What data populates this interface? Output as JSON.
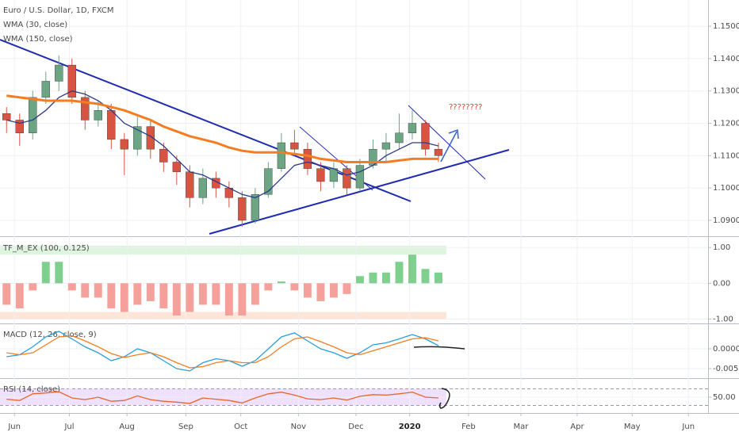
{
  "chart_data": [
    {
      "type": "candlestick",
      "title": "Euro / U.S. Dollar, 1D, FXCM",
      "categories": [
        null,
        null,
        null,
        null,
        null,
        null,
        null,
        null,
        null,
        null,
        null,
        null,
        null,
        null,
        null,
        null,
        null,
        null,
        null,
        null,
        null,
        null,
        null,
        null,
        null,
        null,
        null,
        null,
        null,
        null,
        null,
        null,
        null,
        null
      ],
      "open": [
        1.123,
        1.121,
        1.117,
        1.128,
        1.133,
        1.138,
        1.128,
        1.121,
        1.124,
        1.115,
        1.112,
        1.119,
        1.112,
        1.108,
        1.105,
        1.097,
        1.103,
        1.1,
        1.097,
        1.09,
        1.098,
        1.106,
        1.114,
        1.112,
        1.106,
        1.102,
        1.106,
        1.1,
        1.107,
        1.112,
        1.114,
        1.117,
        1.12,
        1.112
      ],
      "high": [
        1.125,
        1.123,
        1.13,
        1.136,
        1.141,
        1.14,
        1.13,
        1.127,
        1.126,
        1.117,
        1.122,
        1.121,
        1.114,
        1.11,
        1.107,
        1.106,
        1.105,
        1.102,
        1.099,
        1.1,
        1.108,
        1.117,
        1.118,
        1.114,
        1.108,
        1.108,
        1.107,
        1.109,
        1.115,
        1.117,
        1.123,
        1.124,
        1.121,
        1.114
      ],
      "low": [
        1.117,
        1.113,
        1.115,
        1.126,
        1.13,
        1.126,
        1.118,
        1.119,
        1.112,
        1.104,
        1.11,
        1.109,
        1.105,
        1.101,
        1.094,
        1.095,
        1.097,
        1.094,
        1.088,
        1.089,
        1.097,
        1.105,
        1.11,
        1.104,
        1.099,
        1.1,
        1.098,
        1.099,
        1.106,
        1.108,
        1.112,
        1.115,
        1.11,
        1.108
      ],
      "close": [
        1.121,
        1.117,
        1.128,
        1.133,
        1.138,
        1.128,
        1.121,
        1.124,
        1.115,
        1.112,
        1.119,
        1.112,
        1.108,
        1.105,
        1.097,
        1.103,
        1.1,
        1.097,
        1.09,
        1.098,
        1.106,
        1.114,
        1.112,
        1.106,
        1.102,
        1.106,
        1.1,
        1.107,
        1.112,
        1.114,
        1.117,
        1.12,
        1.112,
        1.11
      ],
      "up_color": "#6ba583",
      "down_color": "#d75442",
      "series": [
        {
          "name": "WMA (30, close)",
          "color": "#2c3a8c",
          "values": [
            1.121,
            1.12,
            1.121,
            1.124,
            1.128,
            1.13,
            1.129,
            1.127,
            1.124,
            1.12,
            1.118,
            1.116,
            1.113,
            1.109,
            1.105,
            1.104,
            1.102,
            1.1,
            1.098,
            1.097,
            1.099,
            1.103,
            1.107,
            1.108,
            1.107,
            1.106,
            1.104,
            1.105,
            1.107,
            1.11,
            1.112,
            1.114,
            1.114,
            1.113
          ]
        },
        {
          "name": "WMA (150, close)",
          "color": "#f57c20",
          "values": [
            1.1285,
            1.128,
            1.1275,
            1.127,
            1.127,
            1.127,
            1.1265,
            1.126,
            1.125,
            1.124,
            1.1225,
            1.121,
            1.119,
            1.1175,
            1.116,
            1.115,
            1.114,
            1.1125,
            1.1115,
            1.111,
            1.111,
            1.111,
            1.1105,
            1.11,
            1.109,
            1.1085,
            1.108,
            1.108,
            1.108,
            1.108,
            1.1085,
            1.109,
            1.109,
            1.109
          ]
        }
      ],
      "xlim": [
        0,
        54.1
      ],
      "ylim": [
        1.08533,
        1.15811
      ],
      "yticks": [
        {
          "value": 1.09,
          "label": "1.09000"
        },
        {
          "value": 1.1,
          "label": "1.10000"
        },
        {
          "value": 1.11,
          "label": "1.11000"
        },
        {
          "value": 1.12,
          "label": "1.12000"
        },
        {
          "value": 1.13,
          "label": "1.13000"
        },
        {
          "value": 1.14,
          "label": "1.14000"
        },
        {
          "value": 1.15,
          "label": "1.15000"
        }
      ],
      "annotation": "????????",
      "grid": true
    },
    {
      "type": "bar",
      "title": "TF_M_EX (100, 0.125)",
      "categories": [
        null,
        null,
        null,
        null,
        null,
        null,
        null,
        null,
        null,
        null,
        null,
        null,
        null,
        null,
        null,
        null,
        null,
        null,
        null,
        null,
        null,
        null,
        null,
        null,
        null,
        null,
        null,
        null,
        null,
        null,
        null,
        null,
        null,
        null
      ],
      "values": [
        -0.6,
        -0.7,
        -0.2,
        0.6,
        0.6,
        -0.2,
        -0.4,
        -0.4,
        -0.7,
        -0.8,
        -0.6,
        -0.5,
        -0.7,
        -0.9,
        -0.8,
        -0.6,
        -0.6,
        -0.9,
        -0.9,
        -0.6,
        -0.2,
        0.05,
        -0.2,
        -0.4,
        -0.5,
        -0.4,
        -0.3,
        0.2,
        0.3,
        0.3,
        0.6,
        0.8,
        0.4,
        0.3
      ],
      "positive_color": "#7fcf8f",
      "negative_color": "#f5a09a",
      "bands": [
        {
          "from": 0.8,
          "to": 1.05,
          "color": "#dcf5dc"
        },
        {
          "from": -0.8,
          "to": -1.0,
          "color": "#fde5d8"
        }
      ],
      "xlim": [
        0,
        54.1
      ],
      "ylim": [
        -1.1,
        1.27
      ],
      "yticks": [
        {
          "value": -1,
          "label": "-1.00"
        },
        {
          "value": 0,
          "label": "0.00"
        },
        {
          "value": 1,
          "label": "1.00"
        }
      ],
      "grid": true
    },
    {
      "type": "line",
      "title": "MACD (12, 26, close, 9)",
      "categories": [
        null,
        null,
        null,
        null,
        null,
        null,
        null,
        null,
        null,
        null,
        null,
        null,
        null,
        null,
        null,
        null,
        null,
        null,
        null,
        null,
        null,
        null,
        null,
        null,
        null,
        null,
        null,
        null,
        null,
        null,
        null,
        null,
        null,
        null
      ],
      "series": [
        {
          "color": "#2a9fd8",
          "values": [
            -0.002,
            -0.0015,
            0.0005,
            0.003,
            0.0044,
            0.0025,
            0.0005,
            -0.001,
            -0.003,
            -0.002,
            0,
            -0.001,
            -0.003,
            -0.005,
            -0.0056,
            -0.0035,
            -0.0025,
            -0.003,
            -0.0044,
            -0.003,
            0,
            0.003,
            0.004,
            0.002,
            0,
            -0.001,
            -0.0024,
            -0.001,
            0.001,
            0.0015,
            0.0025,
            0.0036,
            0.0025,
            0.0008
          ]
        },
        {
          "color": "#f57c20",
          "values": [
            -0.001,
            -0.0015,
            -0.001,
            0.001,
            0.003,
            0.0033,
            0.002,
            0.0005,
            -0.0012,
            -0.0022,
            -0.0015,
            -0.001,
            -0.002,
            -0.0035,
            -0.0048,
            -0.0045,
            -0.0035,
            -0.003,
            -0.0035,
            -0.0035,
            -0.002,
            0.0005,
            0.0025,
            0.003,
            0.0018,
            0.0005,
            -0.001,
            -0.0015,
            -0.0005,
            0.0005,
            0.0015,
            0.0025,
            0.0028,
            0.002
          ]
        }
      ],
      "xlim": [
        0,
        54.1
      ],
      "ylim": [
        -0.0072,
        0.0062
      ],
      "yticks": [
        {
          "value": -0.005,
          "label": "-0.00500"
        },
        {
          "value": 0,
          "label": "0.00000"
        }
      ],
      "grid": true
    },
    {
      "type": "line",
      "title": "RSI (14, close)",
      "categories": [
        null,
        null,
        null,
        null,
        null,
        null,
        null,
        null,
        null,
        null,
        null,
        null,
        null,
        null,
        null,
        null,
        null,
        null,
        null,
        null,
        null,
        null,
        null,
        null,
        null,
        null,
        null,
        null,
        null,
        null,
        null,
        null,
        null,
        null
      ],
      "series": [
        {
          "color": "#e8652a",
          "values": [
            45,
            42,
            58,
            60,
            63,
            48,
            44,
            50,
            40,
            42,
            53,
            44,
            40,
            38,
            35,
            48,
            45,
            42,
            36,
            48,
            58,
            62,
            55,
            46,
            44,
            48,
            43,
            52,
            56,
            55,
            58,
            62,
            50,
            48
          ]
        }
      ],
      "bands": [
        {
          "from": 30,
          "to": 70,
          "color": "#efe0fc"
        }
      ],
      "xlim": [
        0,
        54.1
      ],
      "ylim": [
        13.8,
        93.8
      ],
      "yticks": [
        {
          "value": 50,
          "label": "50.00"
        }
      ],
      "xticks": [
        {
          "value": 1.1,
          "label": "Jun"
        },
        {
          "value": 5.3,
          "label": "Jul"
        },
        {
          "value": 9.7,
          "label": "Aug"
        },
        {
          "value": 14.2,
          "label": "Sep"
        },
        {
          "value": 18.4,
          "label": "Oct"
        },
        {
          "value": 22.8,
          "label": "Nov"
        },
        {
          "value": 27.2,
          "label": "Dec"
        },
        {
          "value": 31.3,
          "label": "2020"
        },
        {
          "value": 35.8,
          "label": "Feb"
        },
        {
          "value": 39.8,
          "label": "Mar"
        },
        {
          "value": 44.1,
          "label": "Apr"
        },
        {
          "value": 48.3,
          "label": "May"
        },
        {
          "value": 52.6,
          "label": "Jun"
        }
      ],
      "grid": true
    }
  ]
}
